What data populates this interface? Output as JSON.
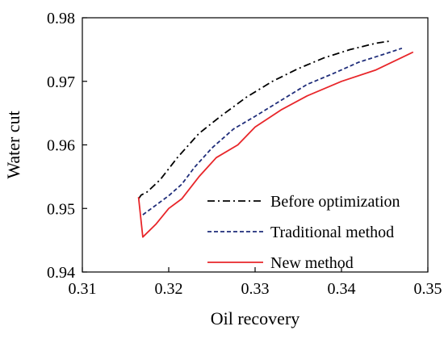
{
  "chart_data": {
    "type": "line",
    "title": "",
    "xlabel": "Oil recovery",
    "ylabel": "Water cut",
    "xlim": [
      0.31,
      0.35
    ],
    "ylim": [
      0.94,
      0.98
    ],
    "xticks": [
      "0.31",
      "0.32",
      "0.33",
      "0.34",
      "0.35"
    ],
    "yticks": [
      "0.94",
      "0.95",
      "0.96",
      "0.97",
      "0.98"
    ],
    "grid": false,
    "legend_position": "bottom-right",
    "series": [
      {
        "name": "Before optimization",
        "color": "#000000",
        "style": "dash-dot",
        "points": [
          [
            0.3165,
            0.9515
          ],
          [
            0.3168,
            0.9521
          ],
          [
            0.3175,
            0.9526
          ],
          [
            0.319,
            0.9545
          ],
          [
            0.321,
            0.958
          ],
          [
            0.3235,
            0.9618
          ],
          [
            0.326,
            0.9645
          ],
          [
            0.329,
            0.9675
          ],
          [
            0.332,
            0.97
          ],
          [
            0.335,
            0.972
          ],
          [
            0.338,
            0.9737
          ],
          [
            0.341,
            0.975
          ],
          [
            0.344,
            0.976
          ],
          [
            0.3455,
            0.9763
          ]
        ]
      },
      {
        "name": "Traditional method",
        "color": "#1f2d7a",
        "style": "dashed",
        "points": [
          [
            0.317,
            0.949
          ],
          [
            0.3185,
            0.9505
          ],
          [
            0.32,
            0.952
          ],
          [
            0.3215,
            0.9538
          ],
          [
            0.323,
            0.9565
          ],
          [
            0.325,
            0.9595
          ],
          [
            0.3275,
            0.9625
          ],
          [
            0.33,
            0.9645
          ],
          [
            0.333,
            0.967
          ],
          [
            0.336,
            0.9695
          ],
          [
            0.339,
            0.9712
          ],
          [
            0.342,
            0.973
          ],
          [
            0.345,
            0.9743
          ],
          [
            0.347,
            0.9752
          ]
        ]
      },
      {
        "name": "New method",
        "color": "#e8262a",
        "style": "solid",
        "points": [
          [
            0.3165,
            0.9518
          ],
          [
            0.317,
            0.9455
          ],
          [
            0.3185,
            0.9475
          ],
          [
            0.32,
            0.95
          ],
          [
            0.3215,
            0.9515
          ],
          [
            0.3235,
            0.955
          ],
          [
            0.3255,
            0.958
          ],
          [
            0.328,
            0.96
          ],
          [
            0.33,
            0.9628
          ],
          [
            0.333,
            0.9655
          ],
          [
            0.336,
            0.9677
          ],
          [
            0.34,
            0.97
          ],
          [
            0.344,
            0.9718
          ],
          [
            0.3483,
            0.9746
          ]
        ]
      }
    ]
  }
}
